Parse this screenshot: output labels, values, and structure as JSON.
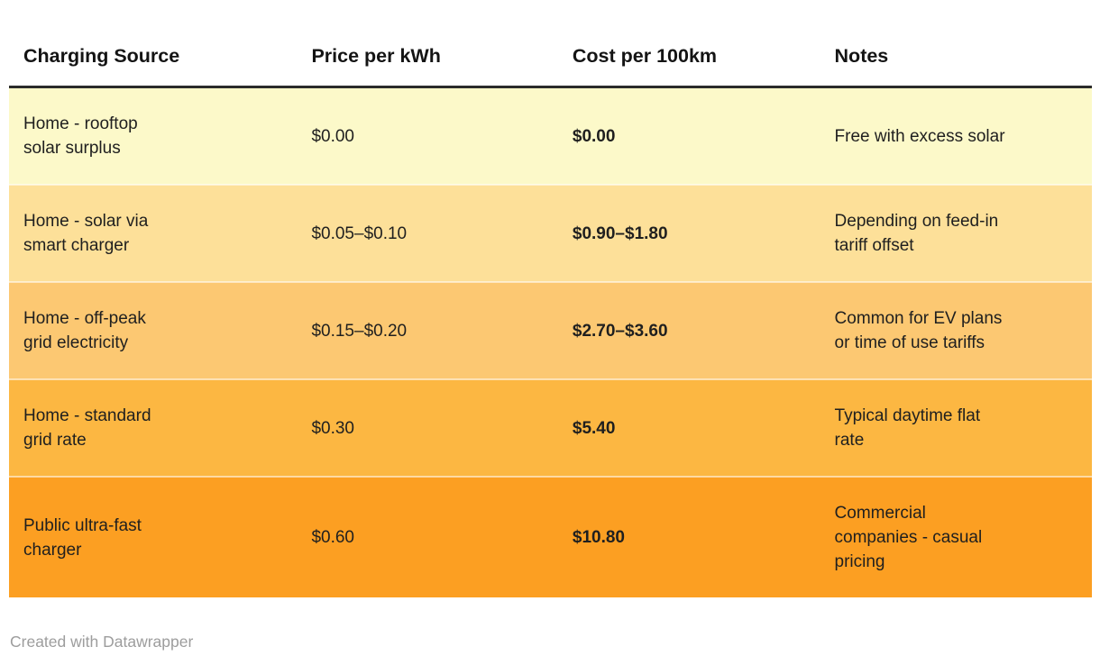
{
  "chart_data": {
    "type": "table",
    "columns": [
      {
        "key": "source",
        "label": "Charging Source"
      },
      {
        "key": "price",
        "label": "Price per kWh"
      },
      {
        "key": "cost",
        "label": "Cost per 100km"
      },
      {
        "key": "notes",
        "label": "Notes"
      }
    ],
    "rows": [
      {
        "source": "Home - rooftop\nsolar surplus",
        "price": "$0.00",
        "cost": "$0.00",
        "notes": "Free with excess solar",
        "row_color": "#fcf9c9"
      },
      {
        "source": "Home - solar via\nsmart charger",
        "price": "$0.05–$0.10",
        "cost": "$0.90–$1.80",
        "notes": "Depending on feed-in\ntariff offset",
        "row_color": "#fde099"
      },
      {
        "source": "Home - off-peak\ngrid electricity",
        "price": "$0.15–$0.20",
        "cost": "$2.70–$3.60",
        "notes": "Common for EV plans\nor time of use tariffs",
        "row_color": "#fcc872"
      },
      {
        "source": "Home - standard\ngrid rate",
        "price": "$0.30",
        "cost": "$5.40",
        "notes": "Typical daytime flat\nrate",
        "row_color": "#fcb742"
      },
      {
        "source": "Public ultra-fast\ncharger",
        "price": "$0.60",
        "cost": "$10.80",
        "notes": "Commercial\ncompanies - casual\npricing",
        "row_color": "#fc9f22"
      }
    ]
  },
  "footer": {
    "attribution": "Created with Datawrapper"
  },
  "style": {
    "header_rule_color": "#2b2b2b",
    "text_color": "#1f1f1f",
    "footer_text_color": "#9d9d9d"
  }
}
